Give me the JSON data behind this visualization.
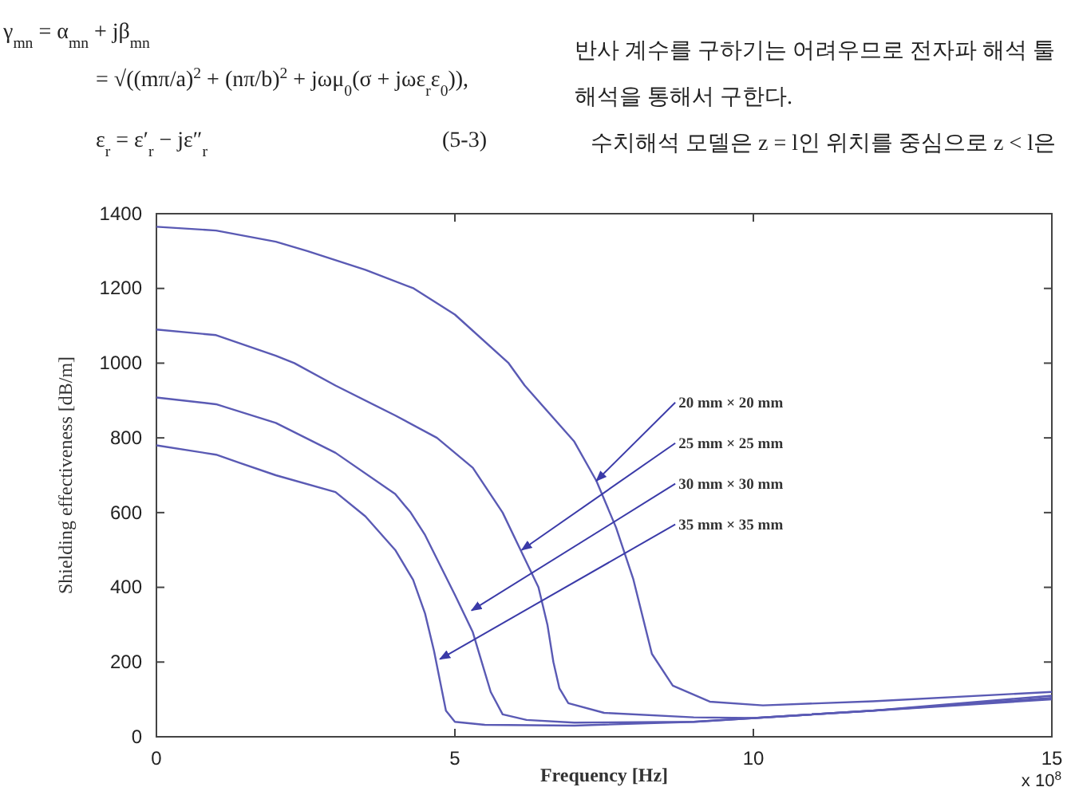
{
  "chart_data": {
    "type": "line",
    "xlabel": "Frequency  [Hz]",
    "ylabel": "Shielding effectiveness [dB/m]",
    "xlim": [
      0,
      15
    ],
    "xticks": [
      0,
      5,
      10,
      15
    ],
    "ylim": [
      0,
      1400
    ],
    "yticks": [
      0,
      200,
      400,
      600,
      800,
      1000,
      1200,
      1400
    ],
    "marker": "none",
    "line_style": "solid",
    "series": [
      {
        "color": "#5a5ab4",
        "x": [
          0,
          1,
          2,
          2.53,
          3.5,
          4.31,
          5,
          5.9,
          6.17,
          7,
          7.37,
          7.7,
          7.99,
          8.3,
          8.65,
          9.27,
          10.16,
          12,
          15
        ],
        "values": [
          1365,
          1355,
          1325,
          1300,
          1250,
          1200,
          1130,
          1000,
          940,
          790,
          685,
          560,
          421,
          222,
          137,
          94,
          84,
          95,
          120
        ]
      },
      {
        "color": "#5a5ab4",
        "x": [
          0,
          1,
          2,
          2.31,
          3,
          4,
          4.7,
          5.3,
          5.8,
          6.1,
          6.4,
          6.55,
          6.65,
          6.75,
          6.9,
          7.5,
          9,
          10,
          12,
          15
        ],
        "values": [
          1090,
          1075,
          1020,
          1000,
          940,
          860,
          800,
          720,
          600,
          500,
          400,
          300,
          200,
          130,
          90,
          64,
          52,
          50,
          70,
          110
        ]
      },
      {
        "color": "#5a5ab4",
        "x": [
          0,
          1,
          2,
          3,
          4,
          4.26,
          4.5,
          5,
          5.3,
          5.45,
          5.6,
          5.8,
          6.2,
          7,
          9,
          12,
          15
        ],
        "values": [
          908,
          890,
          840,
          760,
          650,
          600,
          540,
          380,
          280,
          200,
          120,
          60,
          45,
          38,
          40,
          70,
          104
        ]
      },
      {
        "color": "#5a5ab4",
        "x": [
          0,
          1,
          1.38,
          2,
          3,
          3.5,
          4,
          4.3,
          4.5,
          4.65,
          4.75,
          4.85,
          5,
          5.5,
          7,
          9,
          12,
          15
        ],
        "values": [
          780,
          755,
          734,
          700,
          655,
          590,
          500,
          420,
          330,
          230,
          150,
          70,
          40,
          32,
          30,
          40,
          70,
          100
        ]
      }
    ],
    "annotations": [
      {
        "text": "20 mm  × 20 mm",
        "x": 7.37,
        "y": 685
      },
      {
        "text": "25 mm  × 25 mm",
        "x": 6.12,
        "y": 500
      },
      {
        "text": "30 mm  × 30 mm",
        "x": 5.28,
        "y": 338
      },
      {
        "text": "35 mm  × 35 mm",
        "x": 4.75,
        "y": 208
      },
      "x 10$^{8}$",
      "γ$_{mn}$ = α$_{mn}$ + jβ$_{mn}$",
      "= √((mπ/a)$^{2}$ + (nπ/b)$^{2}$ + jωμ$_{0}$(σ + jωε$_{r}$ε$_{0}$)),",
      "ε$_{r}$ = ε′$_{r}$ − jε″$_{r}$",
      "(5-3)",
      "반사 계수를 구하기는 어려우므로 전자파 해석 툴",
      "해석을 통해서 구한다.",
      "수치해석 모델은 z = l인 위치를 중심으로 z < l은"
    ]
  }
}
